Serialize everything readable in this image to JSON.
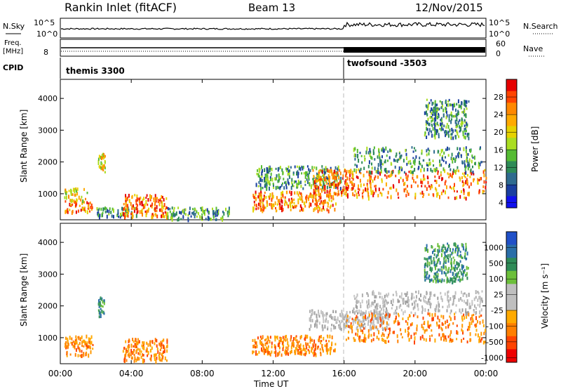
{
  "header": {
    "station": "Rankin Inlet (fitACF)",
    "beam": "Beam 13",
    "date": "12/Nov/2015"
  },
  "summary": {
    "nsky_label": "N.Sky",
    "nsky_ticks": [
      "10^5",
      "10^0"
    ],
    "nsearch_label": "N.Search",
    "nsearch_ticks": [
      "10^5",
      "10^0"
    ],
    "freq_label": "Freq.",
    "freq_unit": "[MHz]",
    "freq_tick": "8",
    "nave_label": "Nave",
    "nave_ticks": [
      "60",
      "0"
    ],
    "cpid_label": "CPID",
    "cpid_segments": [
      {
        "name": "themis 3300",
        "start_hour": 0
      },
      {
        "name": "twofsound -3503",
        "start_hour": 16
      }
    ]
  },
  "chart_data": [
    {
      "type": "heatmap",
      "title": "",
      "ylabel": "Slant Range [km]",
      "yticks": [
        1000,
        2000,
        3000,
        4000
      ],
      "ylim": [
        180,
        4600
      ],
      "xlim_hours": [
        0,
        24
      ],
      "colorbar_label": "Power [dB]",
      "colorbar_ticks": [
        "28",
        "24",
        "20",
        "16",
        "12",
        "8",
        "4"
      ],
      "colorbar_colors": [
        "#e60000",
        "#ff4400",
        "#ff8800",
        "#ffaa00",
        "#e6d200",
        "#aadd22",
        "#55bb33",
        "#2e8b57",
        "#2f6b8f",
        "#1a3fa0",
        "#1010ee"
      ],
      "regions": [
        {
          "t": [
            0.2,
            1.8
          ],
          "r": [
            450,
            800
          ],
          "level": "high"
        },
        {
          "t": [
            0.2,
            1.5
          ],
          "r": [
            800,
            1200
          ],
          "level": "mid"
        },
        {
          "t": [
            2.1,
            2.5
          ],
          "r": [
            1700,
            2300
          ],
          "level": "mid"
        },
        {
          "t": [
            2.0,
            4.3
          ],
          "r": [
            300,
            600
          ],
          "level": "low"
        },
        {
          "t": [
            3.5,
            6.0
          ],
          "r": [
            300,
            1000
          ],
          "level": "high"
        },
        {
          "t": [
            6.0,
            9.5
          ],
          "r": [
            220,
            600
          ],
          "level": "low"
        },
        {
          "t": [
            10.8,
            15.5
          ],
          "r": [
            500,
            1100
          ],
          "level": "high"
        },
        {
          "t": [
            11.0,
            15.8
          ],
          "r": [
            1200,
            1900
          ],
          "level": "low"
        },
        {
          "t": [
            14.2,
            16.5
          ],
          "r": [
            1000,
            1800
          ],
          "level": "high"
        },
        {
          "t": [
            16.0,
            24.0
          ],
          "r": [
            900,
            1800
          ],
          "level": "high"
        },
        {
          "t": [
            16.5,
            23.8
          ],
          "r": [
            1700,
            2500
          ],
          "level": "low"
        },
        {
          "t": [
            20.5,
            23.0
          ],
          "r": [
            2800,
            4000
          ],
          "level": "low"
        }
      ]
    },
    {
      "type": "heatmap",
      "title": "",
      "ylabel": "Slant Range [km]",
      "yticks": [
        1000,
        2000,
        3000,
        4000
      ],
      "ylim": [
        180,
        4600
      ],
      "xlim_hours": [
        0,
        24
      ],
      "xticks": [
        "00:00",
        "04:00",
        "08:00",
        "12:00",
        "16:00",
        "20:00",
        "00:00"
      ],
      "xlabel": "Time UT",
      "colorbar_label": "Velocity [m s⁻¹]",
      "colorbar_ticks": [
        "1000",
        "500",
        "100",
        "25",
        "-25",
        "-100",
        "-500",
        "-1000"
      ],
      "colorbar_colors": [
        "#2050c8",
        "#2a6ea8",
        "#2e8b57",
        "#6cbf3a",
        "#bfbfbf",
        "#bfbfbf",
        "#ffaa00",
        "#ff7f00",
        "#ff4400",
        "#ee0000"
      ],
      "regions": [
        {
          "t": [
            0.2,
            1.8
          ],
          "r": [
            450,
            1100
          ],
          "level": "neg"
        },
        {
          "t": [
            2.1,
            2.5
          ],
          "r": [
            1700,
            2300
          ],
          "level": "pos"
        },
        {
          "t": [
            3.5,
            6.0
          ],
          "r": [
            300,
            1000
          ],
          "level": "neg"
        },
        {
          "t": [
            10.8,
            15.5
          ],
          "r": [
            500,
            1100
          ],
          "level": "neg"
        },
        {
          "t": [
            14.0,
            18.5
          ],
          "r": [
            1300,
            1900
          ],
          "level": "zero"
        },
        {
          "t": [
            16.0,
            24.0
          ],
          "r": [
            900,
            1800
          ],
          "level": "neg"
        },
        {
          "t": [
            16.5,
            23.8
          ],
          "r": [
            1800,
            2500
          ],
          "level": "zero"
        },
        {
          "t": [
            20.5,
            23.0
          ],
          "r": [
            2800,
            4000
          ],
          "level": "pos"
        }
      ]
    }
  ]
}
